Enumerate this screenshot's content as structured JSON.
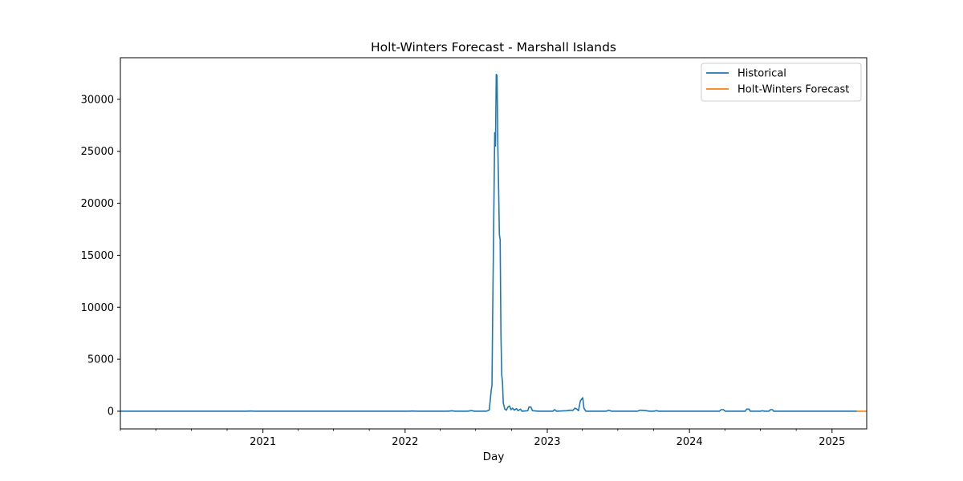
{
  "chart_data": {
    "type": "line",
    "title": "Holt-Winters Forecast - Marshall Islands",
    "xlabel": "Day",
    "ylabel": "",
    "xlim": [
      "2020-01-01",
      "2025-03-31"
    ],
    "ylim": [
      -1700,
      34000
    ],
    "x_ticks": [
      "2021",
      "2022",
      "2023",
      "2024",
      "2025"
    ],
    "y_ticks": [
      0,
      5000,
      10000,
      15000,
      20000,
      25000,
      30000
    ],
    "grid": false,
    "legend_position": "top-right",
    "series": [
      {
        "name": "Historical",
        "color": "#1f77b4",
        "points": [
          [
            "2020-01-01",
            0
          ],
          [
            "2020-11-20",
            0
          ],
          [
            "2020-12-01",
            20
          ],
          [
            "2020-12-10",
            0
          ],
          [
            "2022-01-10",
            0
          ],
          [
            "2022-01-20",
            20
          ],
          [
            "2022-02-01",
            0
          ],
          [
            "2022-04-20",
            0
          ],
          [
            "2022-05-01",
            40
          ],
          [
            "2022-05-10",
            0
          ],
          [
            "2022-06-10",
            0
          ],
          [
            "2022-06-20",
            60
          ],
          [
            "2022-06-28",
            0
          ],
          [
            "2022-07-28",
            0
          ],
          [
            "2022-08-05",
            100
          ],
          [
            "2022-08-10",
            2000
          ],
          [
            "2022-08-12",
            2500
          ],
          [
            "2022-08-14",
            10000
          ],
          [
            "2022-08-17",
            20000
          ],
          [
            "2022-08-19",
            26800
          ],
          [
            "2022-08-21",
            25500
          ],
          [
            "2022-08-23",
            32400
          ],
          [
            "2022-08-25",
            32300
          ],
          [
            "2022-08-27",
            25500
          ],
          [
            "2022-08-29",
            21500
          ],
          [
            "2022-08-31",
            17000
          ],
          [
            "2022-09-02",
            16500
          ],
          [
            "2022-09-04",
            7500
          ],
          [
            "2022-09-06",
            3500
          ],
          [
            "2022-09-08",
            2800
          ],
          [
            "2022-09-10",
            800
          ],
          [
            "2022-09-14",
            200
          ],
          [
            "2022-09-18",
            100
          ],
          [
            "2022-09-22",
            400
          ],
          [
            "2022-09-26",
            500
          ],
          [
            "2022-09-30",
            150
          ],
          [
            "2022-10-04",
            300
          ],
          [
            "2022-10-08",
            100
          ],
          [
            "2022-10-14",
            250
          ],
          [
            "2022-10-18",
            50
          ],
          [
            "2022-10-24",
            200
          ],
          [
            "2022-10-28",
            0
          ],
          [
            "2022-11-12",
            50
          ],
          [
            "2022-11-15",
            400
          ],
          [
            "2022-11-20",
            400
          ],
          [
            "2022-11-24",
            50
          ],
          [
            "2022-12-10",
            0
          ],
          [
            "2023-01-15",
            0
          ],
          [
            "2023-01-20",
            150
          ],
          [
            "2023-01-25",
            0
          ],
          [
            "2023-02-20",
            50
          ],
          [
            "2023-03-01",
            100
          ],
          [
            "2023-03-08",
            80
          ],
          [
            "2023-03-13",
            300
          ],
          [
            "2023-03-18",
            200
          ],
          [
            "2023-03-22",
            50
          ],
          [
            "2023-03-27",
            1000
          ],
          [
            "2023-03-31",
            1200
          ],
          [
            "2023-04-02",
            1300
          ],
          [
            "2023-04-05",
            300
          ],
          [
            "2023-04-10",
            0
          ],
          [
            "2023-06-01",
            0
          ],
          [
            "2023-06-08",
            80
          ],
          [
            "2023-06-15",
            0
          ],
          [
            "2023-08-20",
            0
          ],
          [
            "2023-08-28",
            100
          ],
          [
            "2023-09-10",
            60
          ],
          [
            "2023-09-20",
            0
          ],
          [
            "2023-10-01",
            0
          ],
          [
            "2023-10-08",
            50
          ],
          [
            "2023-10-15",
            0
          ],
          [
            "2024-03-18",
            0
          ],
          [
            "2024-03-22",
            150
          ],
          [
            "2024-03-28",
            150
          ],
          [
            "2024-04-02",
            0
          ],
          [
            "2024-05-23",
            0
          ],
          [
            "2024-05-27",
            200
          ],
          [
            "2024-06-02",
            200
          ],
          [
            "2024-06-05",
            0
          ],
          [
            "2024-07-01",
            0
          ],
          [
            "2024-07-06",
            40
          ],
          [
            "2024-07-12",
            0
          ],
          [
            "2024-07-23",
            0
          ],
          [
            "2024-07-27",
            150
          ],
          [
            "2024-08-01",
            150
          ],
          [
            "2024-08-04",
            0
          ],
          [
            "2025-03-06",
            0
          ]
        ]
      },
      {
        "name": "Holt-Winters Forecast",
        "color": "#ff7f0e",
        "points": [
          [
            "2025-03-06",
            0
          ],
          [
            "2025-03-31",
            0
          ]
        ]
      }
    ]
  }
}
